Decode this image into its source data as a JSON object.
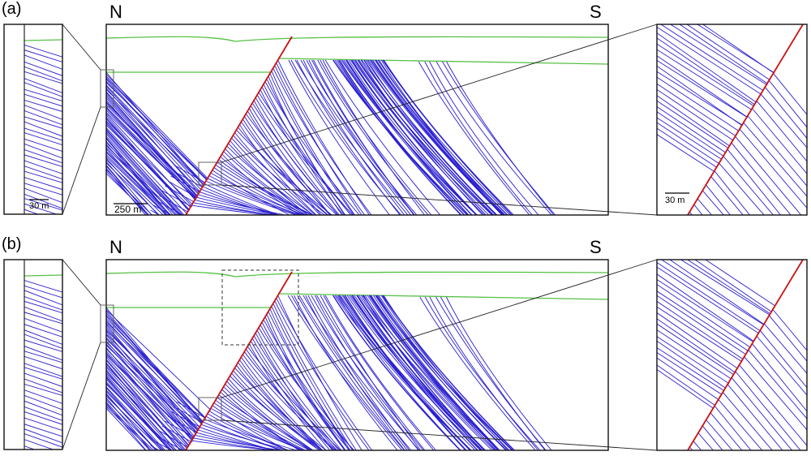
{
  "panels": [
    {
      "id": "a",
      "label": "(a)",
      "north": "N",
      "south": "S",
      "main_scale": "250 m",
      "left_inset_scale": "30 m",
      "right_inset_scale": "30 m",
      "has_dashed_box": false
    },
    {
      "id": "b",
      "label": "(b)",
      "north": "N",
      "south": "S",
      "main_scale": "",
      "left_inset_scale": "",
      "right_inset_scale": "",
      "has_dashed_box": true
    }
  ],
  "colors": {
    "layers": "#2a1fd0",
    "fault": "#cc1111",
    "horizon": "#55c043",
    "frame": "#111111"
  }
}
